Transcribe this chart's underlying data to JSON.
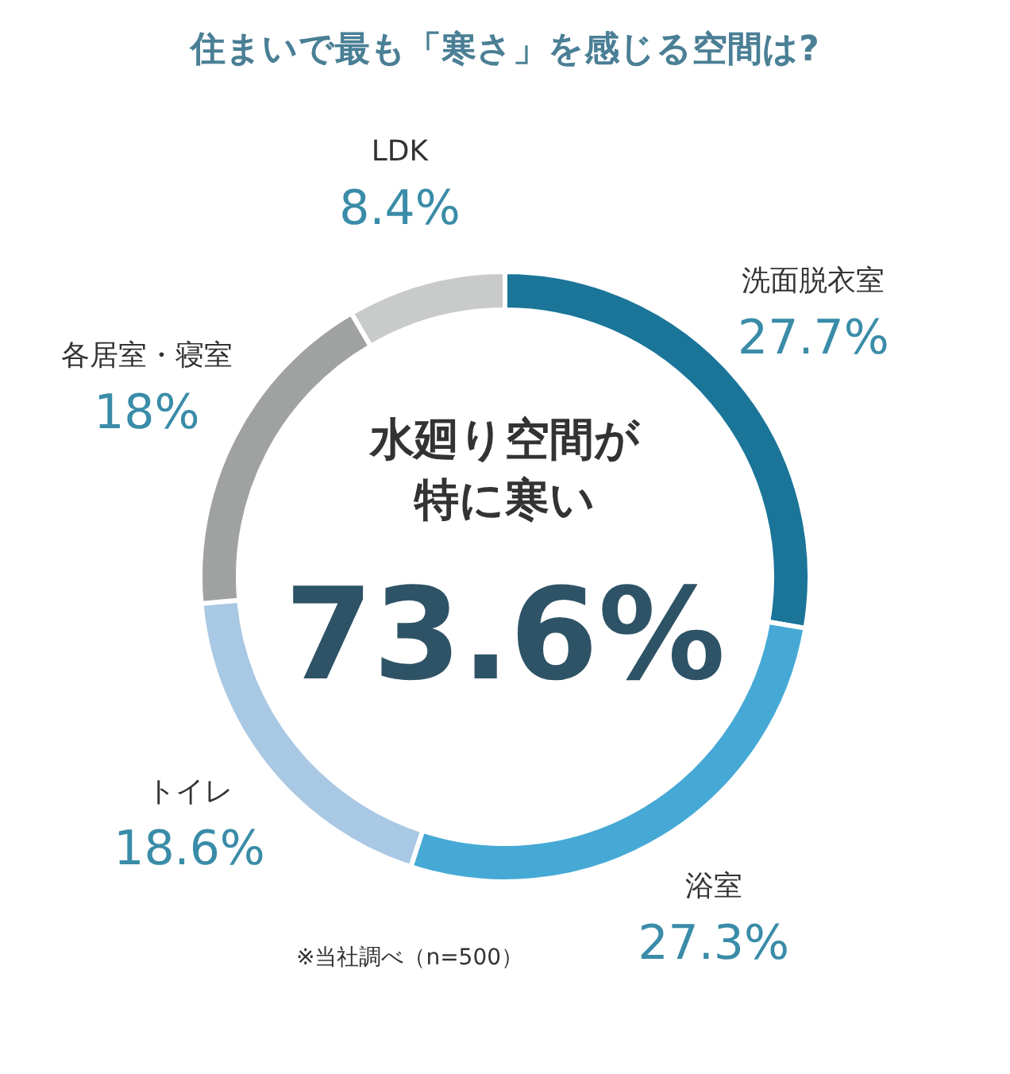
{
  "chart_data": {
    "type": "donut",
    "title": "住まいで最も「寒さ」を感じる空間は?",
    "categories": [
      "洗面脱衣室",
      "浴室",
      "トイレ",
      "各居室・寝室",
      "LDK"
    ],
    "values": [
      27.7,
      27.3,
      18.6,
      18,
      8.4
    ],
    "value_labels": [
      "27.7%",
      "27.3%",
      "18.6%",
      "18%",
      "8.4%"
    ],
    "colors": [
      "#1b7599",
      "#46a9d5",
      "#a9c8e4",
      "#a0a2a2",
      "#c9cbcb"
    ],
    "legend": false,
    "annotations": [
      "水廻り空間が",
      "特に寒い",
      "73.6%",
      "※当社調べ（n=500）"
    ]
  }
}
